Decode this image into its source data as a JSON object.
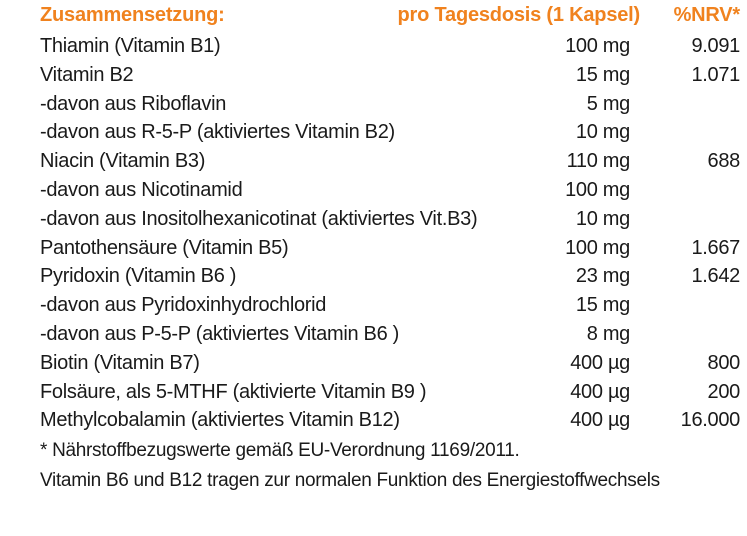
{
  "header": {
    "label": "Zusammensetzung:",
    "dose": "pro Tagesdosis (1 Kapsel)",
    "nrv": "%NRV*"
  },
  "colors": {
    "accent": "#f0821e",
    "text": "#1a1a1a"
  },
  "rows": [
    {
      "name": "Thiamin (Vitamin B1)",
      "amount": "100 mg",
      "nrv": "9.091"
    },
    {
      "name": "Vitamin B2",
      "amount": "15 mg",
      "nrv": "1.071"
    },
    {
      "name": "-davon aus Riboflavin",
      "amount": "5 mg",
      "nrv": ""
    },
    {
      "name": "-davon aus R-5-P (aktiviertes Vitamin B2)",
      "amount": "10 mg",
      "nrv": ""
    },
    {
      "name": "Niacin (Vitamin B3)",
      "amount": "110 mg",
      "nrv": "688"
    },
    {
      "name": "-davon aus Nicotinamid",
      "amount": "100 mg",
      "nrv": ""
    },
    {
      "name": "-davon aus Inositolhexanicotinat (aktiviertes Vit.B3)",
      "amount": "10 mg",
      "nrv": ""
    },
    {
      "name": "Pantothensäure (Vitamin B5)",
      "amount": "100 mg",
      "nrv": "1.667"
    },
    {
      "name": "Pyridoxin (Vitamin B6 )",
      "amount": "23 mg",
      "nrv": "1.642"
    },
    {
      "name": "-davon aus Pyridoxinhydrochlorid",
      "amount": "15 mg",
      "nrv": ""
    },
    {
      "name": "-davon aus P-5-P (aktiviertes Vitamin B6 )",
      "amount": "8 mg",
      "nrv": ""
    },
    {
      "name": "Biotin (Vitamin B7)",
      "amount": "400 µg",
      "nrv": "800"
    },
    {
      "name": "Folsäure, als 5-MTHF (aktivierte Vitamin B9 )",
      "amount": "400 µg",
      "nrv": "200"
    },
    {
      "name": "Methylcobalamin (aktiviertes Vitamin B12)",
      "amount": "400 µg",
      "nrv": "16.000"
    }
  ],
  "footnotes": {
    "nrv_note": "* Nährstoffbezugswerte gemäß EU-Verordnung 1169/2011.",
    "claim": "Vitamin B6 und B12 tragen zur normalen Funktion des Energiestoffwechsels"
  }
}
